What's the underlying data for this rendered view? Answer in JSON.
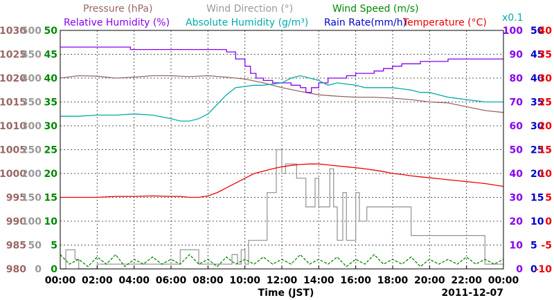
{
  "chart_data": {
    "type": "line",
    "xlabel": "Time (JST)",
    "date_label": "2011-12-07",
    "x_ticks": [
      "00:00",
      "02:00",
      "04:00",
      "06:00",
      "08:00",
      "10:00",
      "12:00",
      "14:00",
      "16:00",
      "18:00",
      "20:00",
      "22:00",
      "00:00"
    ],
    "legend": {
      "row1": [
        {
          "name": "Pressure (hPa)",
          "color": "#996666"
        },
        {
          "name": "Wind Direction (°)",
          "color": "#999999"
        },
        {
          "name": "Wind Speed (m/s)",
          "color": "#008800"
        }
      ],
      "row2": [
        {
          "name": "Relative Humidity (%)",
          "color": "#8800ee"
        },
        {
          "name": "Absolute Humidity (g/m³)",
          "color": "#00aaaa"
        },
        {
          "name": "Rain Rate(mm/h)",
          "color": "#0000cc"
        },
        {
          "name": "Temperature (°C)",
          "color": "#ee0000"
        }
      ],
      "scale_note": "x0.1"
    },
    "axes": {
      "pressure": {
        "color": "#996666",
        "ylim": [
          980,
          1030
        ],
        "ticks": [
          "1030",
          "1025",
          "1020",
          "1015",
          "1010",
          "1005",
          "1000",
          "995",
          "990",
          "985",
          "980"
        ]
      },
      "wind_direction": {
        "color": "#999999",
        "ylim": [
          0,
          500
        ],
        "ticks": [
          "500",
          "450",
          "400",
          "350",
          "300",
          "250",
          "200",
          "150",
          "100",
          "50",
          "0"
        ]
      },
      "wind_speed": {
        "color": "#008800",
        "ylim": [
          0,
          50
        ],
        "ticks": [
          "50",
          "45",
          "40",
          "35",
          "30",
          "25",
          "20",
          "15",
          "10",
          "5",
          "0"
        ]
      },
      "humidity": {
        "color": "#8800ee",
        "ylim": [
          0,
          100
        ],
        "ticks": [
          "100",
          "90",
          "80",
          "70",
          "60",
          "50",
          "40",
          "30",
          "20",
          "10",
          "0"
        ]
      },
      "rain_rate": {
        "color": "#0000cc",
        "ylim": [
          0,
          50
        ],
        "ticks": [
          "50",
          "45",
          "40",
          "35",
          "30",
          "25",
          "20",
          "15",
          "10",
          "5",
          "0"
        ]
      },
      "temperature": {
        "color": "#ee0000",
        "ylim": [
          -10,
          40
        ],
        "ticks": [
          "40",
          "35",
          "30",
          "25",
          "20",
          "15",
          "10",
          "5",
          "0",
          "-5",
          "-10"
        ]
      }
    },
    "series": [
      {
        "name": "Pressure (hPa)",
        "color": "#996666",
        "x": [
          0,
          1,
          2,
          3,
          4,
          5,
          6,
          7,
          8,
          9,
          10,
          11,
          12,
          13,
          14,
          15,
          16,
          17,
          18,
          19,
          20,
          21,
          22,
          23,
          24
        ],
        "y": [
          1020,
          1020.5,
          1020.4,
          1020,
          1020.2,
          1020.5,
          1020.5,
          1020.3,
          1020.5,
          1020.2,
          1019.8,
          1019,
          1018,
          1017.2,
          1016.5,
          1016.2,
          1016,
          1016,
          1015.8,
          1015.5,
          1015,
          1014.8,
          1014,
          1013.2,
          1012.8
        ]
      },
      {
        "name": "Wind Direction (°)",
        "color": "#999999",
        "x": [
          0,
          0.3,
          0.8,
          1,
          2,
          3,
          4,
          5,
          6,
          6.5,
          7,
          7.5,
          8,
          8.5,
          9,
          9.3,
          9.6,
          9.8,
          10,
          10.2,
          10.5,
          11,
          11.2,
          11.5,
          11.7,
          12,
          12.2,
          12.5,
          12.8,
          13,
          13.3,
          13.5,
          13.8,
          14,
          14.2,
          14.4,
          14.6,
          14.8,
          15,
          15.3,
          15.5,
          15.7,
          16,
          16.2,
          16.4,
          16.6,
          17,
          17.5,
          18,
          18.5,
          19,
          19.5,
          20,
          21,
          22,
          22.5,
          23,
          23.5,
          24
        ],
        "y": [
          0,
          40,
          20,
          0,
          10,
          10,
          10,
          10,
          10,
          40,
          40,
          10,
          10,
          10,
          10,
          30,
          10,
          40,
          10,
          60,
          60,
          60,
          160,
          160,
          250,
          200,
          220,
          220,
          190,
          190,
          130,
          130,
          190,
          130,
          130,
          130,
          210,
          130,
          60,
          160,
          60,
          60,
          160,
          100,
          100,
          130,
          130,
          130,
          130,
          130,
          70,
          70,
          70,
          70,
          70,
          70,
          10,
          10,
          10
        ]
      },
      {
        "name": "Wind Speed (m/s)",
        "color": "#008800",
        "x": [
          0,
          0.5,
          1,
          1.5,
          2,
          2.5,
          3,
          3.5,
          4,
          4.5,
          5,
          5.5,
          6,
          6.5,
          7,
          7.5,
          8,
          8.5,
          9,
          9.5,
          10,
          10.5,
          11,
          11.5,
          12,
          12.5,
          13,
          13.5,
          14,
          14.5,
          15,
          15.5,
          16,
          16.5,
          17,
          17.5,
          18,
          18.5,
          19,
          19.5,
          20,
          20.5,
          21,
          21.5,
          22,
          22.5,
          23,
          23.5,
          24
        ],
        "y": [
          3,
          1,
          2,
          0.5,
          2.5,
          1,
          3,
          0.5,
          2,
          1,
          2.5,
          1,
          2,
          1,
          3,
          1,
          2,
          0.5,
          2.5,
          1,
          2,
          1,
          2.5,
          1,
          2,
          1,
          3,
          1,
          2,
          1,
          2.5,
          0.5,
          2,
          1,
          3,
          1,
          2,
          1,
          2.5,
          0.5,
          2,
          1,
          2,
          1,
          2.5,
          1,
          2,
          1,
          2
        ]
      },
      {
        "name": "Relative Humidity (%)",
        "color": "#8800ee",
        "x": [
          0,
          1,
          2,
          3,
          3.8,
          4,
          5,
          6,
          7,
          8,
          8.5,
          9,
          9.5,
          10,
          10.3,
          10.6,
          11,
          11.5,
          12,
          12.5,
          13,
          13.3,
          13.6,
          14,
          14.5,
          15,
          15.5,
          16,
          16.5,
          17,
          17.5,
          18,
          18.5,
          19,
          19.5,
          20,
          20.5,
          21,
          21.5,
          22,
          23,
          24
        ],
        "y": [
          93,
          93,
          93,
          93,
          92,
          92,
          92,
          92,
          92,
          92,
          92,
          91,
          88,
          85,
          82,
          80,
          79,
          78,
          78,
          77,
          76,
          74,
          76,
          78,
          80,
          80,
          81,
          82,
          82,
          83,
          84,
          85,
          86,
          86,
          87,
          87,
          87,
          88,
          88,
          88,
          88,
          88
        ]
      },
      {
        "name": "Absolute Humidity (g/m³)",
        "color": "#00aaaa",
        "x": [
          0,
          1,
          2,
          3,
          4,
          5,
          6,
          6.5,
          7,
          7.5,
          8,
          8.5,
          9,
          9.5,
          10,
          10.5,
          11,
          11.5,
          12,
          12.5,
          13,
          13.5,
          14,
          14.5,
          15,
          15.5,
          16,
          16.5,
          17,
          17.5,
          18,
          18.5,
          19,
          19.5,
          20,
          20.5,
          21,
          21.5,
          22,
          22.5,
          23,
          24
        ],
        "y": [
          64,
          64,
          64.5,
          64.5,
          65,
          64.5,
          63,
          62,
          62,
          63,
          65,
          69,
          73,
          76,
          76.5,
          77,
          77,
          77.5,
          78,
          80,
          81,
          80,
          79,
          77,
          78,
          77.5,
          77,
          76,
          76,
          76,
          76,
          75.5,
          75,
          74,
          74,
          73,
          72,
          71.5,
          71,
          70.5,
          70,
          70
        ]
      },
      {
        "name": "Temperature (°C)",
        "color": "#ee0000",
        "x": [
          0,
          1,
          2,
          3,
          4,
          5,
          6,
          6.5,
          7,
          7.5,
          8,
          8.5,
          9,
          9.5,
          10,
          10.5,
          11,
          11.5,
          12,
          12.5,
          13,
          13.5,
          14,
          14.5,
          15,
          15.5,
          16,
          16.5,
          17,
          17.5,
          18,
          18.5,
          19,
          19.5,
          20,
          20.5,
          21,
          21.5,
          22,
          22.5,
          23,
          23.5,
          24
        ],
        "y": [
          5,
          5,
          5,
          5.2,
          5.2,
          5.3,
          5.2,
          5.2,
          5,
          5,
          5.3,
          6,
          7,
          8,
          9,
          10,
          10.5,
          11,
          11.4,
          11.7,
          11.9,
          12,
          12,
          11.8,
          11.6,
          11.4,
          11.2,
          11,
          10.7,
          10.4,
          10,
          9.8,
          9.5,
          9.3,
          9.1,
          8.9,
          8.7,
          8.5,
          8.3,
          8.1,
          7.9,
          7.6,
          7.3
        ]
      }
    ]
  }
}
